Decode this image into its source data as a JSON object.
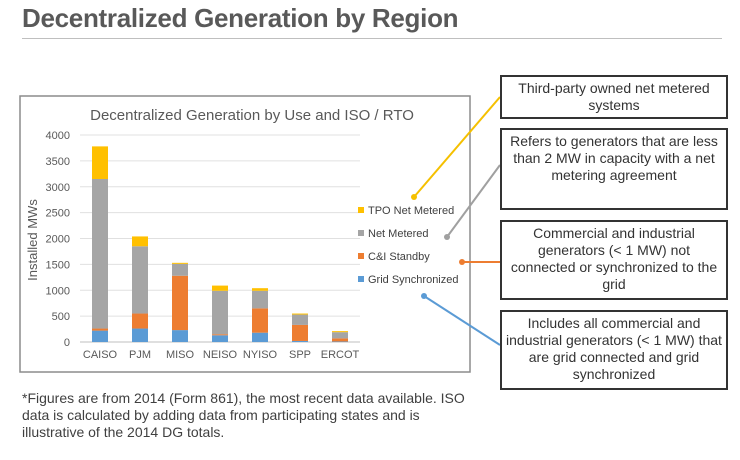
{
  "slide": {
    "title": "Decentralized Generation by Region",
    "footnote": "*Figures are from 2014 (Form 861), the most recent data available. ISO data is calculated by adding data from participating states and is illustrative of the 2014 DG totals."
  },
  "callouts": [
    {
      "text": "Third-party owned net metered systems",
      "color": "#f5c000"
    },
    {
      "text": "Refers to generators that are less than 2 MW in capacity with a net metering agreement",
      "color": "#a0a0a0"
    },
    {
      "text": "Commercial and industrial generators (< 1 MW) not connected or synchronized to the grid",
      "color": "#ed7d31"
    },
    {
      "text": "Includes all commercial and industrial generators (< 1 MW) that are grid connected and grid synchronized",
      "color": "#5b9bd5"
    }
  ],
  "chart_data": {
    "type": "bar",
    "stacked": true,
    "title": "Decentralized Generation by Use and ISO / RTO",
    "xlabel": "",
    "ylabel": "Installed MWs",
    "ylim": [
      0,
      4000
    ],
    "yticks": [
      0,
      500,
      1000,
      1500,
      2000,
      2500,
      3000,
      3500,
      4000
    ],
    "grid": true,
    "legend_position": "right",
    "categories": [
      "CAISO",
      "PJM",
      "MISO",
      "NEISO",
      "NYISO",
      "SPP",
      "ERCOT"
    ],
    "series": [
      {
        "name": "Grid Synchronized",
        "color": "#5b9bd5",
        "values": [
          220,
          260,
          230,
          130,
          180,
          20,
          10
        ]
      },
      {
        "name": "C&I Standby",
        "color": "#ed7d31",
        "values": [
          40,
          290,
          1050,
          20,
          470,
          310,
          60
        ]
      },
      {
        "name": "Net Metered",
        "color": "#a5a5a5",
        "values": [
          2890,
          1300,
          230,
          840,
          340,
          200,
          120
        ]
      },
      {
        "name": "TPO Net Metered",
        "color": "#ffc000",
        "values": [
          630,
          190,
          20,
          100,
          50,
          20,
          20
        ]
      }
    ]
  }
}
